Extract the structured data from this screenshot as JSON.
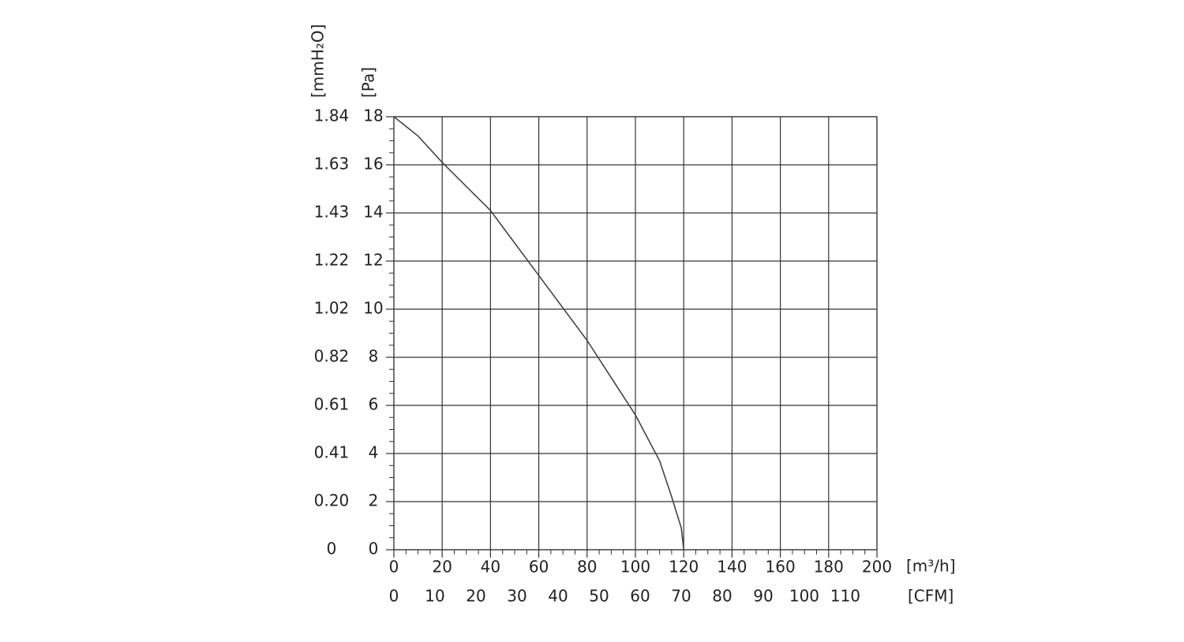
{
  "chart_data": {
    "type": "line",
    "y_label": "[Pa]",
    "y2_label": "[mmH₂O]",
    "x_label": "[m³/h]",
    "x2_label": "[CFM]",
    "series": [
      {
        "color": "#444444",
        "x": [
          0,
          10,
          20,
          40,
          60,
          80,
          100,
          110,
          115,
          119,
          120
        ],
        "values": [
          18,
          17.2,
          16.1,
          14.1,
          11.4,
          8.7,
          5.6,
          3.7,
          2.2,
          0.9,
          0
        ]
      }
    ],
    "xlim": [
      0,
      200
    ],
    "xticks": [
      0,
      20,
      40,
      60,
      80,
      100,
      120,
      140,
      160,
      180,
      200
    ],
    "xminorticks": [
      5,
      10,
      15,
      25,
      30,
      35,
      45,
      50,
      55,
      65,
      70,
      75,
      85,
      90,
      95,
      105,
      110,
      115,
      125,
      130,
      135,
      145,
      150,
      155,
      165,
      170,
      175,
      185,
      190,
      195
    ],
    "x2lim": [
      0,
      117.7
    ],
    "x2ticks": [
      0,
      10,
      20,
      30,
      40,
      50,
      60,
      70,
      80,
      90,
      100,
      110
    ],
    "ylim": [
      0,
      18
    ],
    "yticks": [
      0,
      2,
      4,
      6,
      8,
      10,
      12,
      14,
      16,
      18
    ],
    "yminorticks": [
      0.5,
      1,
      1.5,
      2.5,
      3,
      3.5,
      4.5,
      5,
      5.5,
      6.5,
      7,
      7.5,
      8.5,
      9,
      9.5,
      10.5,
      11,
      11.5,
      12.5,
      13,
      13.5,
      14.5,
      15,
      15.5,
      16.5,
      17,
      17.5
    ],
    "y2lim": [
      0,
      1.8355
    ],
    "y2ticks": [
      0,
      {
        "value": 0.2039,
        "label": "0.20"
      },
      {
        "value": 0.4079,
        "label": "0.41"
      },
      {
        "value": 0.6118,
        "label": "0.61"
      },
      {
        "value": 0.8158,
        "label": "0.82"
      },
      {
        "value": 1.0197,
        "label": "1.02"
      },
      {
        "value": 1.2237,
        "label": "1.22"
      },
      {
        "value": 1.4276,
        "label": "1.43"
      },
      {
        "value": 1.6316,
        "label": "1.63"
      },
      {
        "value": 1.8355,
        "label": "1.84"
      }
    ],
    "grid": true
  }
}
